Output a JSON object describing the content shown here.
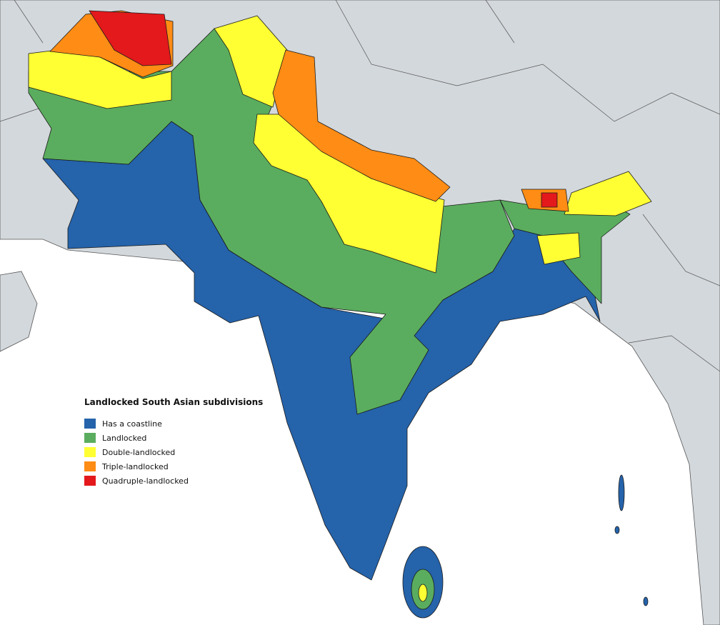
{
  "legend": {
    "title": "Landlocked South Asian subdivisions",
    "items": [
      {
        "label": "Has a coastline",
        "color": "#2563ab"
      },
      {
        "label": "Landlocked",
        "color": "#5aad5e"
      },
      {
        "label": "Double-landlocked",
        "color": "#ffff33"
      },
      {
        "label": "Triple-landlocked",
        "color": "#ff8c14"
      },
      {
        "label": "Quadruple-landlocked",
        "color": "#e3191c"
      }
    ]
  }
}
